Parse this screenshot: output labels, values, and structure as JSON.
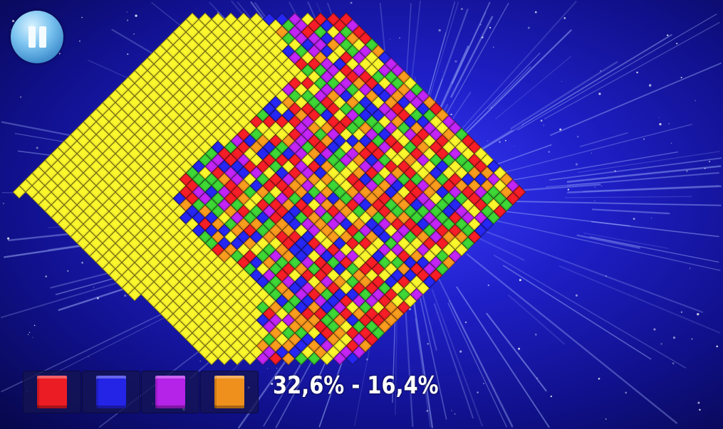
{
  "game": {
    "score_text": "32,6% - 16,4%",
    "pause_icon": "pause-icon",
    "palette": {
      "yellow": "#f2ea2a",
      "green": "#39c632",
      "red": "#ec1c24",
      "blue": "#2424e6",
      "purple": "#b522e8",
      "orange": "#f0901c"
    },
    "color_choices": [
      {
        "name": "red",
        "color": "#ec1c24"
      },
      {
        "name": "blue",
        "color": "#2424e6"
      },
      {
        "name": "purple",
        "color": "#b522e8"
      },
      {
        "name": "orange",
        "color": "#f0901c"
      }
    ],
    "player_color": "yellow",
    "opponent_color": "green",
    "player_percent": 32.6,
    "opponent_percent": 16.4
  }
}
